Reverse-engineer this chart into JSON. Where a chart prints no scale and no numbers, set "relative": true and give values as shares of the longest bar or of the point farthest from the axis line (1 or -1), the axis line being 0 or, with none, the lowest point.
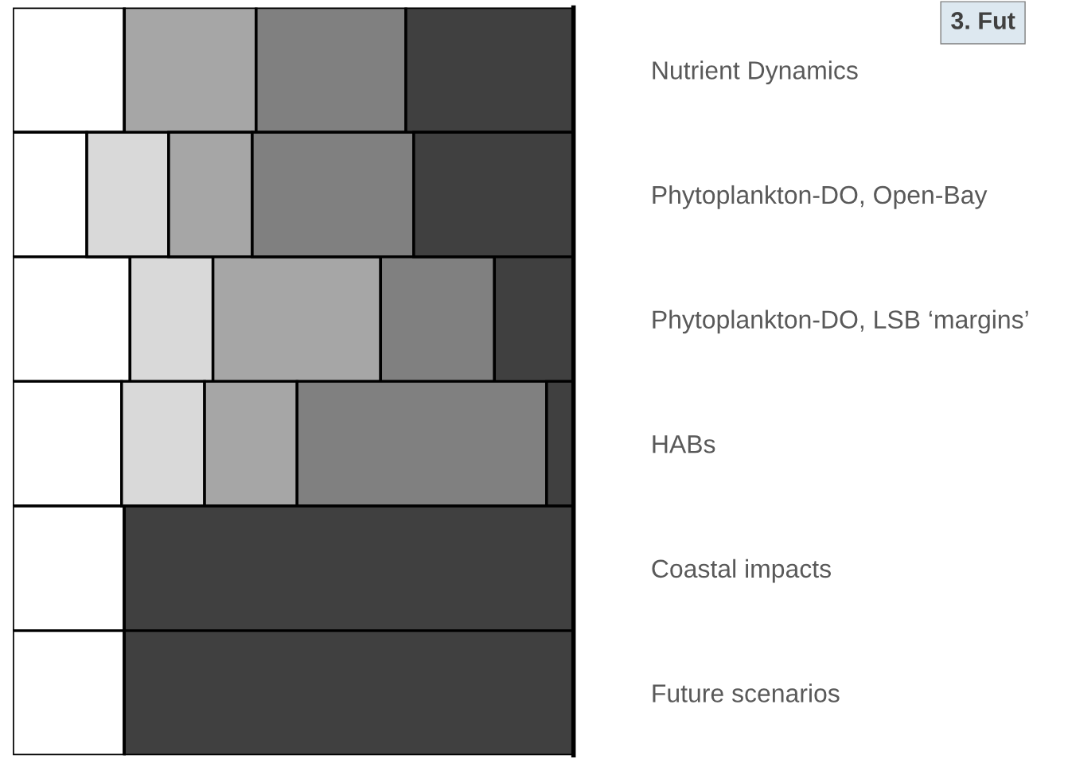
{
  "chart_data": {
    "type": "bar",
    "orientation": "horizontal",
    "stacked": true,
    "relative": true,
    "legend": false,
    "categories": [
      "Nutrient Dynamics",
      "Phytoplankton-DO, Open-Bay",
      "Phytoplankton-DO, LSB ‘margins’",
      "HABs",
      "Coastal impacts",
      "Future scenarios"
    ],
    "series": [
      {
        "color": "#ffffff",
        "values": [
          0.199,
          0.132,
          0.209,
          0.194,
          0.199,
          0.199
        ]
      },
      {
        "color": "#d9d9d9",
        "values": [
          0,
          0.146,
          0.148,
          0.148,
          0,
          0
        ]
      },
      {
        "color": "#a6a6a6",
        "values": [
          0.235,
          0.149,
          0.299,
          0.165,
          0,
          0
        ]
      },
      {
        "color": "#808080",
        "values": [
          0.267,
          0.288,
          0.203,
          0.445,
          0,
          0
        ]
      },
      {
        "color": "#404040",
        "values": [
          0.299,
          0.285,
          0.141,
          0.048,
          0.801,
          0.801
        ]
      }
    ],
    "annotations": [
      "3. Fut"
    ]
  }
}
